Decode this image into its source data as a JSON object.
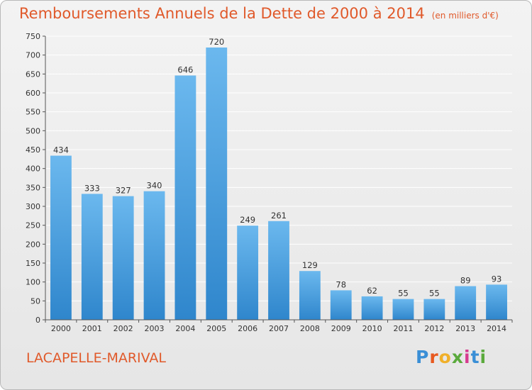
{
  "title": "Remboursements Annuels de la Dette de 2000 à 2014",
  "unit": "(en milliers d'€)",
  "commune": "LACAPELLE-MARIVAL",
  "logo": {
    "letters": [
      "P",
      "r",
      "o",
      "x",
      "i",
      "t",
      "i"
    ],
    "colors": [
      "#3a8fd6",
      "#e8591f",
      "#f0b02a",
      "#5aaa3c",
      "#d63b8f",
      "#3a8fd6",
      "#5aaa3c"
    ]
  },
  "colors": {
    "bar_light": "#6bb8ee",
    "bar_dark": "#2f86cc",
    "title": "#e0592a",
    "grid": "#ffffff",
    "axis": "#555555"
  },
  "chart_data": {
    "type": "bar",
    "title": "Remboursements Annuels de la Dette de 2000 à 2014",
    "subtitle": "(en milliers d'€)",
    "xlabel": "",
    "ylabel": "",
    "categories": [
      "2000",
      "2001",
      "2002",
      "2003",
      "2004",
      "2005",
      "2006",
      "2007",
      "2008",
      "2009",
      "2010",
      "2011",
      "2012",
      "2013",
      "2014"
    ],
    "values": [
      434,
      333,
      327,
      340,
      646,
      720,
      249,
      261,
      129,
      78,
      62,
      55,
      55,
      89,
      93
    ],
    "ylim": [
      0,
      750
    ],
    "yticks": [
      0,
      50,
      100,
      150,
      200,
      250,
      300,
      350,
      400,
      450,
      500,
      550,
      600,
      650,
      700,
      750
    ],
    "grid": true,
    "legend": "none"
  }
}
